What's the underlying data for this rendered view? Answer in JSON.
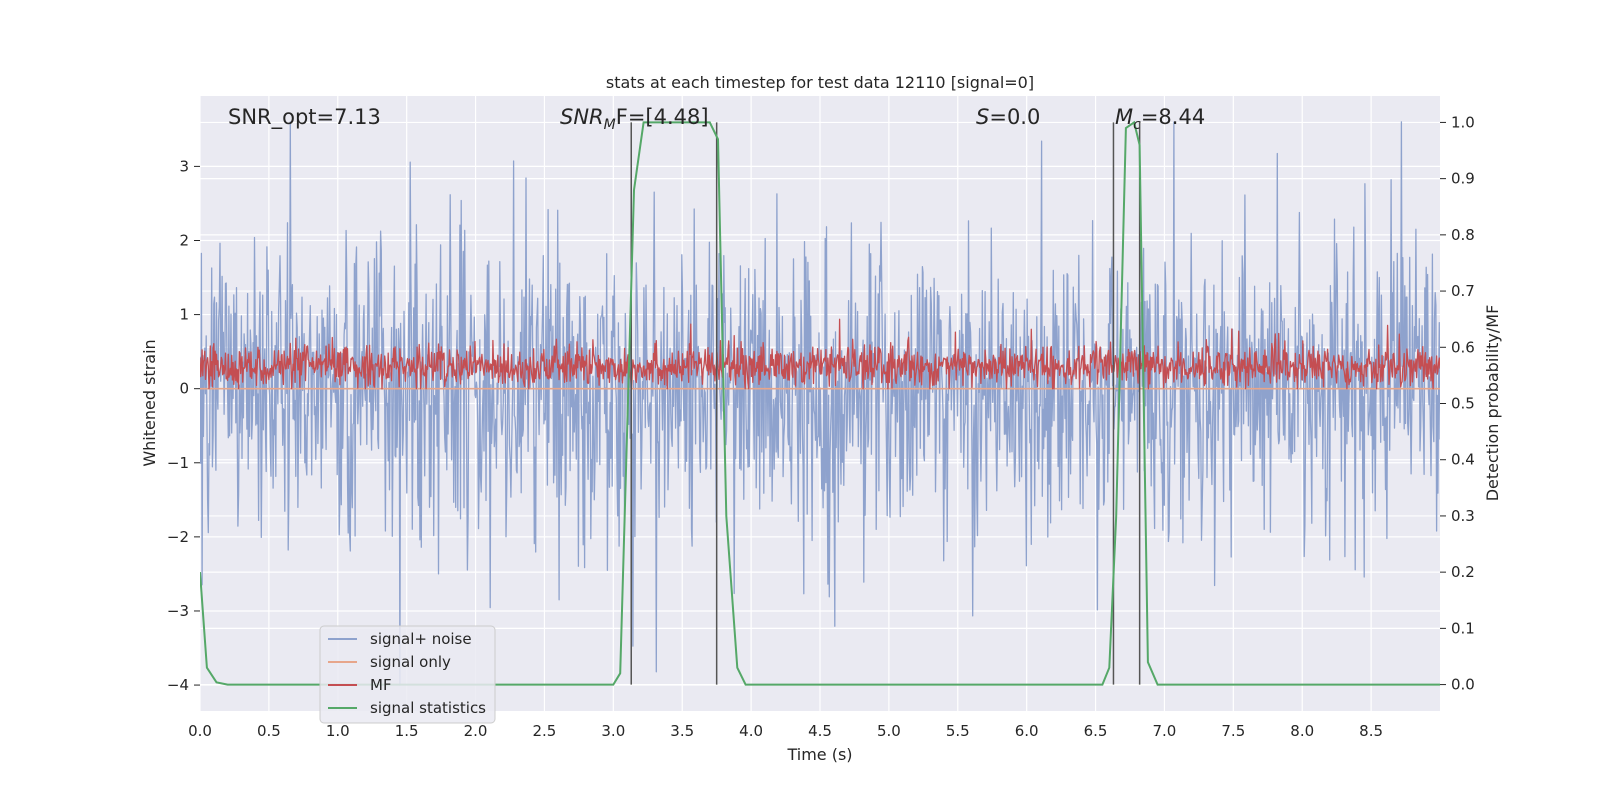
{
  "chart_data": {
    "type": "line",
    "title": "stats at each timestep for test data 12110 [signal=0]",
    "xlabel": "Time (s)",
    "ylabel": "Whitened strain",
    "y2label": "Detection probability/MF",
    "xlim": [
      0.0,
      9.0
    ],
    "ylim": [
      -4.35,
      3.95
    ],
    "y2lim": [
      -0.047,
      1.047
    ],
    "xticks": [
      "0.0",
      "0.5",
      "1.0",
      "1.5",
      "2.0",
      "2.5",
      "3.0",
      "3.5",
      "4.0",
      "4.5",
      "5.0",
      "5.5",
      "6.0",
      "6.5",
      "7.0",
      "7.5",
      "8.0",
      "8.5"
    ],
    "yticks": [
      "-4",
      "-3",
      "-2",
      "-1",
      "0",
      "1",
      "2",
      "3"
    ],
    "y2ticks": [
      "0.0",
      "0.1",
      "0.2",
      "0.3",
      "0.4",
      "0.5",
      "0.6",
      "0.7",
      "0.8",
      "0.9",
      "1.0"
    ],
    "grid": true,
    "legend_position": "lower-left",
    "annotations": {
      "snr_opt": "SNR_opt=7.13",
      "snr_mf": "SNR",
      "snr_mf_sub": "M",
      "snr_mf_tail": "F=[4.48]",
      "s": "S",
      "s_tail": "=0.0",
      "mc": "M",
      "mc_sub": "c",
      "mc_tail": "=8.44"
    },
    "vlines": [
      3.13,
      3.75,
      6.63,
      6.82
    ],
    "series": [
      {
        "name": "signal+ noise",
        "axis": "left",
        "color": "#8ea2cd",
        "description": "noisy whitened strain, amplitude roughly ±1.5 with spikes to ±3.3"
      },
      {
        "name": "signal only",
        "axis": "left",
        "color": "#e7a68b",
        "x": [
          0.0,
          9.0
        ],
        "y": [
          0.0,
          0.0
        ]
      },
      {
        "name": "MF",
        "axis": "left",
        "color": "#c44e52",
        "description": "matched-filter output around 0.3 with spikes to 1.0"
      },
      {
        "name": "signal statistics",
        "axis": "right",
        "color": "#55a868",
        "x": [
          0.0,
          0.05,
          0.12,
          0.2,
          3.0,
          3.05,
          3.1,
          3.15,
          3.22,
          3.7,
          3.76,
          3.82,
          3.9,
          3.96,
          6.55,
          6.6,
          6.65,
          6.72,
          6.78,
          6.82,
          6.88,
          6.95,
          9.0
        ],
        "y": [
          0.2,
          0.03,
          0.004,
          0.0,
          0.0,
          0.02,
          0.45,
          0.88,
          1.0,
          1.0,
          0.97,
          0.3,
          0.03,
          0.0,
          0.0,
          0.03,
          0.3,
          0.99,
          1.0,
          0.96,
          0.04,
          0.0,
          0.0
        ]
      }
    ]
  }
}
